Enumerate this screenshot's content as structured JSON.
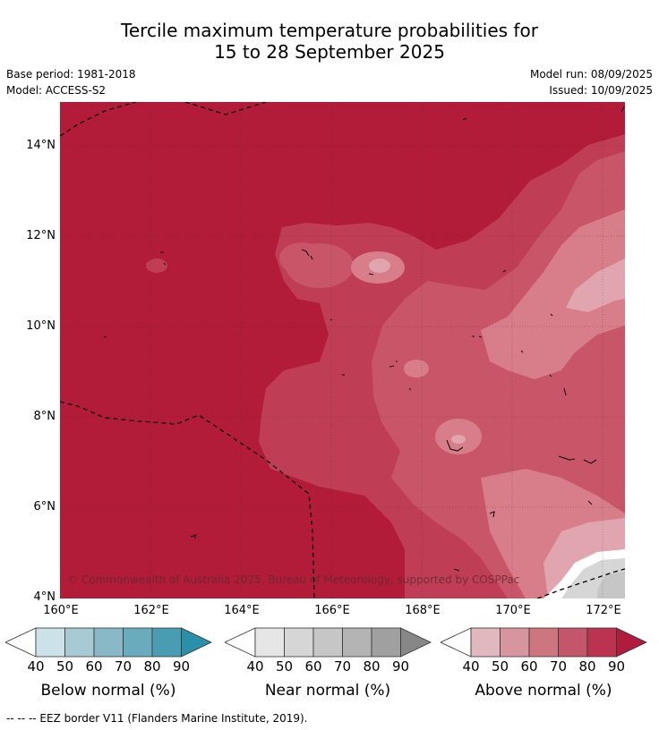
{
  "title": {
    "line1": "Tercile maximum temperature probabilities for",
    "line2": "15 to 28 September 2025"
  },
  "meta": {
    "base_period": "Base period: 1981-2018",
    "model": "Model: ACCESS-S2",
    "model_run": "Model run: 08/09/2025",
    "issued": "Issued: 10/09/2025"
  },
  "map": {
    "lat_labels": [
      "14°N",
      "12°N",
      "10°N",
      "8°N",
      "6°N",
      "4°N"
    ],
    "lon_labels": [
      "160°E",
      "162°E",
      "164°E",
      "166°E",
      "168°E",
      "170°E",
      "172°E"
    ],
    "copyright": "© Commonwealth of Australia 2025, Bureau of Meteorology, supported by COSPPac",
    "colors": {
      "above_90": "#b31c38",
      "above_80": "#bf3d55",
      "above_70": "#c95568",
      "above_60": "#d87d8a",
      "above_50": "#e0a5ae",
      "near_normal": "#d6d6d6"
    }
  },
  "colorbars": [
    {
      "label": "Below normal (%)",
      "ticks": [
        "40",
        "50",
        "60",
        "70",
        "80",
        "90"
      ],
      "colors": [
        "#ffffff",
        "#cbe2e8",
        "#a8cbd3",
        "#89b9c6",
        "#6aacbd",
        "#4a9cb2",
        "#2a8fa8"
      ]
    },
    {
      "label": "Near normal (%)",
      "ticks": [
        "40",
        "50",
        "60",
        "70",
        "80",
        "90"
      ],
      "colors": [
        "#ffffff",
        "#e6e6e6",
        "#d6d6d6",
        "#c6c6c6",
        "#b4b4b4",
        "#a0a0a0",
        "#878787"
      ]
    },
    {
      "label": "Above normal (%)",
      "ticks": [
        "40",
        "50",
        "60",
        "70",
        "80",
        "90"
      ],
      "colors": [
        "#ffffff",
        "#e2b8bf",
        "#d6959f",
        "#ce7680",
        "#c4566b",
        "#bb3350",
        "#b01c3b"
      ]
    }
  ],
  "footer": "--  --  -- EEZ border V11 (Flanders Marine Institute, 2019)."
}
